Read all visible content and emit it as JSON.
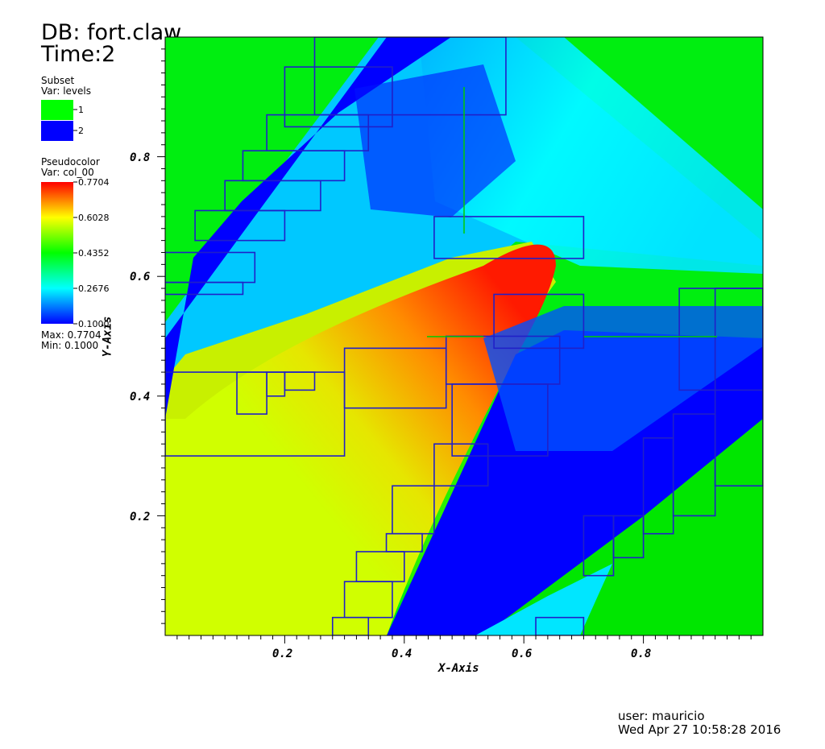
{
  "header": {
    "db_title": "DB: fort.claw",
    "time_title": "Time:2"
  },
  "subset_legend": {
    "title": "Subset",
    "var": "Var: levels",
    "items": [
      {
        "label": "1",
        "color": "#00ff00"
      },
      {
        "label": "2",
        "color": "#0000ff"
      }
    ]
  },
  "pseudocolor_legend": {
    "title": "Pseudocolor",
    "var": "Var: col_00",
    "ticks": [
      "0.7704",
      "0.6028",
      "0.4352",
      "0.2676",
      "0.1000"
    ],
    "max": "Max:  0.7704",
    "min": "Min:  0.1000"
  },
  "footer": {
    "user": "user: mauricio",
    "date": "Wed Apr 27 10:58:28 2016"
  },
  "chart_data": {
    "type": "heatmap",
    "xlabel": "X-Axis",
    "ylabel": "Y-Axis",
    "xlim": [
      0,
      1
    ],
    "ylim": [
      0,
      1
    ],
    "x_ticks": [
      "0.2",
      "0.4",
      "0.6",
      "0.8"
    ],
    "y_ticks": [
      "0.2",
      "0.4",
      "0.6",
      "0.8"
    ],
    "colorbar_range": [
      0.1,
      0.7704
    ],
    "refinement_boxes": [
      [
        0.25,
        0.87,
        0.57,
        1.0
      ],
      [
        0.2,
        0.85,
        0.38,
        0.95
      ],
      [
        0.17,
        0.81,
        0.34,
        0.87
      ],
      [
        0.13,
        0.76,
        0.3,
        0.81
      ],
      [
        0.1,
        0.71,
        0.26,
        0.76
      ],
      [
        0.05,
        0.66,
        0.2,
        0.71
      ],
      [
        0.0,
        0.59,
        0.15,
        0.64
      ],
      [
        0.0,
        0.57,
        0.13,
        0.59
      ],
      [
        0.45,
        0.63,
        0.7,
        0.7
      ],
      [
        0.55,
        0.48,
        0.7,
        0.57
      ],
      [
        0.47,
        0.42,
        0.66,
        0.5
      ],
      [
        0.3,
        0.38,
        0.47,
        0.48
      ],
      [
        0.0,
        0.3,
        0.3,
        0.44
      ],
      [
        0.12,
        0.37,
        0.17,
        0.44
      ],
      [
        0.17,
        0.4,
        0.2,
        0.44
      ],
      [
        0.2,
        0.41,
        0.25,
        0.44
      ],
      [
        0.48,
        0.3,
        0.64,
        0.42
      ],
      [
        0.45,
        0.25,
        0.54,
        0.32
      ],
      [
        0.38,
        0.17,
        0.45,
        0.25
      ],
      [
        0.37,
        0.14,
        0.43,
        0.17
      ],
      [
        0.32,
        0.09,
        0.4,
        0.14
      ],
      [
        0.3,
        0.03,
        0.38,
        0.09
      ],
      [
        0.28,
        0.0,
        0.34,
        0.03
      ],
      [
        0.62,
        0.0,
        0.7,
        0.03
      ],
      [
        0.7,
        0.1,
        0.75,
        0.2
      ],
      [
        0.75,
        0.13,
        0.8,
        0.2
      ],
      [
        0.8,
        0.17,
        0.85,
        0.33
      ],
      [
        0.85,
        0.2,
        0.92,
        0.37
      ],
      [
        0.92,
        0.25,
        1.0,
        0.58
      ],
      [
        0.86,
        0.41,
        1.0,
        0.58
      ]
    ]
  }
}
